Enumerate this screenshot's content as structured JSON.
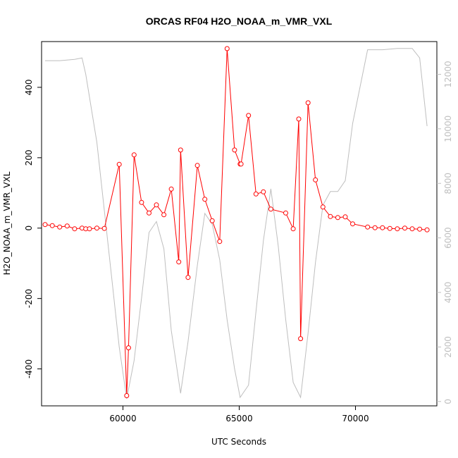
{
  "chart_data": {
    "type": "line",
    "title": "ORCAS RF04 H2O_NOAA_m_VMR_VXL",
    "xlabel": "UTC Seconds",
    "ylabel": "H2O_NOAA_m_VMR_VXL",
    "xlim": [
      56500,
      73500
    ],
    "ylim": [
      -505,
      530
    ],
    "y2lim": [
      -160,
      13200
    ],
    "x_ticks": [
      60000,
      65000,
      70000
    ],
    "x_tick_labels": [
      "60000",
      "65000",
      "70000"
    ],
    "y_ticks": [
      -400,
      -200,
      0,
      200,
      400
    ],
    "y_tick_labels": [
      "-400",
      "-200",
      "0",
      "200",
      "400"
    ],
    "y2_ticks": [
      0,
      2000,
      4000,
      6000,
      8000,
      10000,
      12000
    ],
    "y2_tick_labels": [
      "0",
      "2000",
      "4000",
      "6000",
      "8000",
      "10000",
      "12000"
    ],
    "grid": false,
    "series": [
      {
        "color": "#ff0000",
        "style": "line-with-open-circles",
        "axis": "left",
        "x": [
          56650,
          56960,
          57280,
          57600,
          57920,
          58240,
          58400,
          58560,
          58880,
          59200,
          59840,
          60160,
          60240,
          60480,
          60800,
          61120,
          61440,
          61760,
          62080,
          62400,
          62480,
          62800,
          63200,
          63520,
          63840,
          64160,
          64480,
          64800,
          65040,
          65080,
          65400,
          65720,
          66040,
          66360,
          67000,
          67320,
          67560,
          67640,
          67960,
          68280,
          68600,
          68920,
          69240,
          69560,
          69880,
          70520,
          70840,
          71160,
          71480,
          71800,
          72120,
          72440,
          72760,
          73080
        ],
        "y": [
          10,
          7,
          3,
          6,
          -2,
          0,
          -2,
          -2,
          0,
          -1,
          181,
          -476,
          -340,
          208,
          73,
          43,
          66,
          38,
          111,
          -96,
          222,
          -140,
          178,
          82,
          21,
          -38,
          510,
          222,
          182,
          182,
          320,
          97,
          103,
          54,
          43,
          -2,
          310,
          -314,
          356,
          137,
          60,
          33,
          30,
          32,
          12,
          3,
          1,
          1,
          -1,
          -2,
          0,
          -2,
          -3,
          -5
        ]
      },
      {
        "color": "#bebebe",
        "style": "line",
        "axis": "right",
        "x": [
          56650,
          57280,
          57920,
          58240,
          58400,
          58880,
          59520,
          59840,
          60160,
          60480,
          60800,
          61120,
          61440,
          61760,
          62080,
          62480,
          62800,
          63200,
          63520,
          63840,
          64160,
          64480,
          64800,
          65040,
          65400,
          65720,
          66040,
          66360,
          66680,
          67000,
          67320,
          67640,
          67960,
          68280,
          68600,
          68920,
          69240,
          69560,
          69880,
          70520,
          71160,
          71800,
          72440,
          72760,
          73080
        ],
        "y": [
          12500,
          12500,
          12550,
          12600,
          12000,
          9500,
          4500,
          2000,
          100,
          1500,
          3800,
          6200,
          6600,
          5600,
          2600,
          300,
          2200,
          5000,
          6900,
          6500,
          5200,
          3000,
          1200,
          150,
          600,
          3300,
          5900,
          7800,
          5700,
          3000,
          700,
          150,
          2500,
          5100,
          7200,
          7700,
          7700,
          8100,
          10200,
          12900,
          12900,
          12950,
          12950,
          12600,
          10100
        ]
      }
    ]
  }
}
